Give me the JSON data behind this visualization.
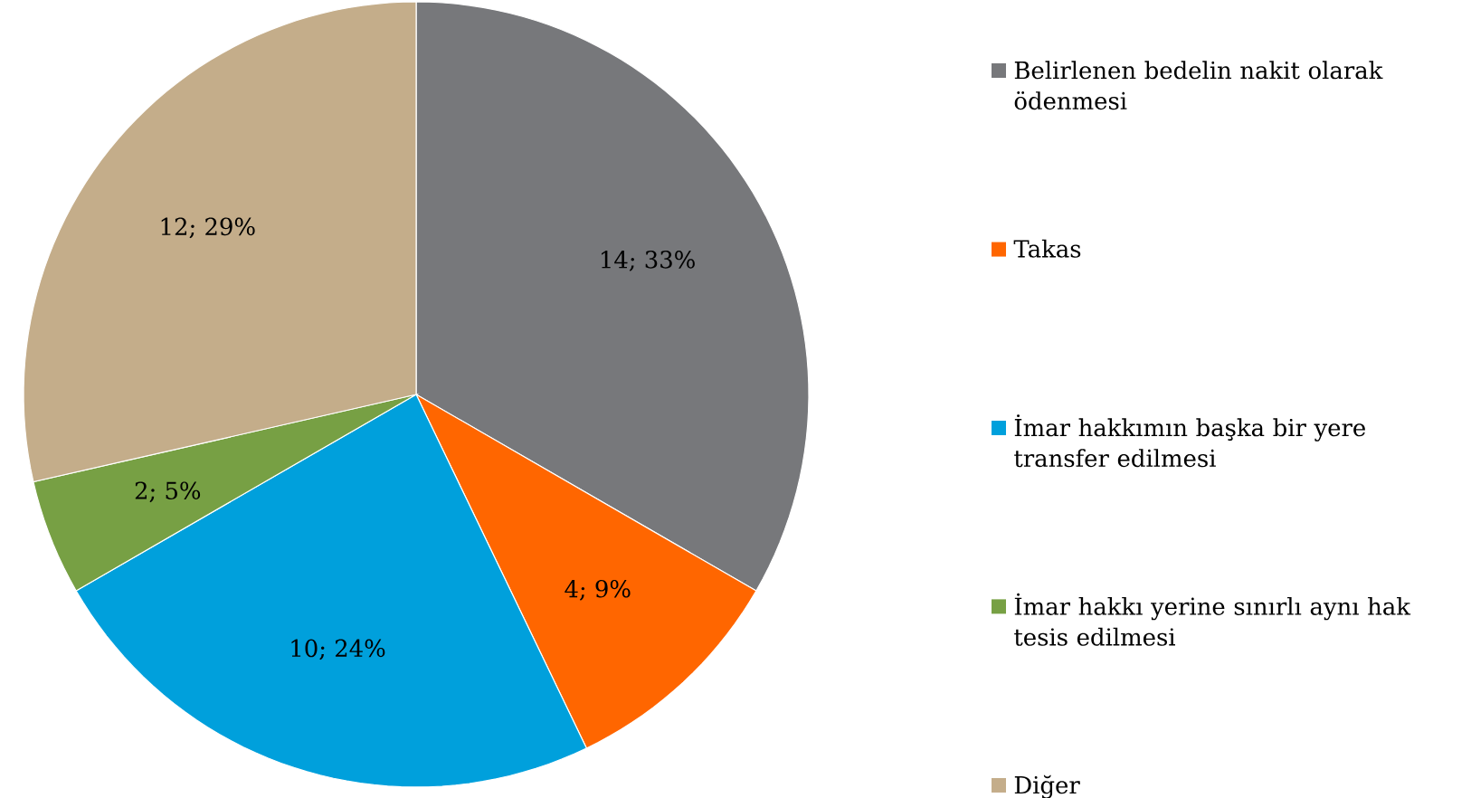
{
  "chart_data": {
    "type": "pie",
    "categories": [
      "Belirlenen bedelin nakit olarak ödenmesi",
      "Takas",
      "İmar hakkımın başka bir yere transfer edilmesi",
      "İmar hakkı yerine sınırlı aynı hak tesis edilmesi",
      "Diğer"
    ],
    "values": [
      14,
      4,
      10,
      2,
      12
    ],
    "colors": [
      "#77787b",
      "#ff6600",
      "#00a0dc",
      "#77a044",
      "#c4ad8a"
    ],
    "value_labels": [
      "14; 33%",
      "4; 9%",
      "10; 24%",
      "2; 5%",
      "12; 29%"
    ],
    "legend": "right"
  }
}
